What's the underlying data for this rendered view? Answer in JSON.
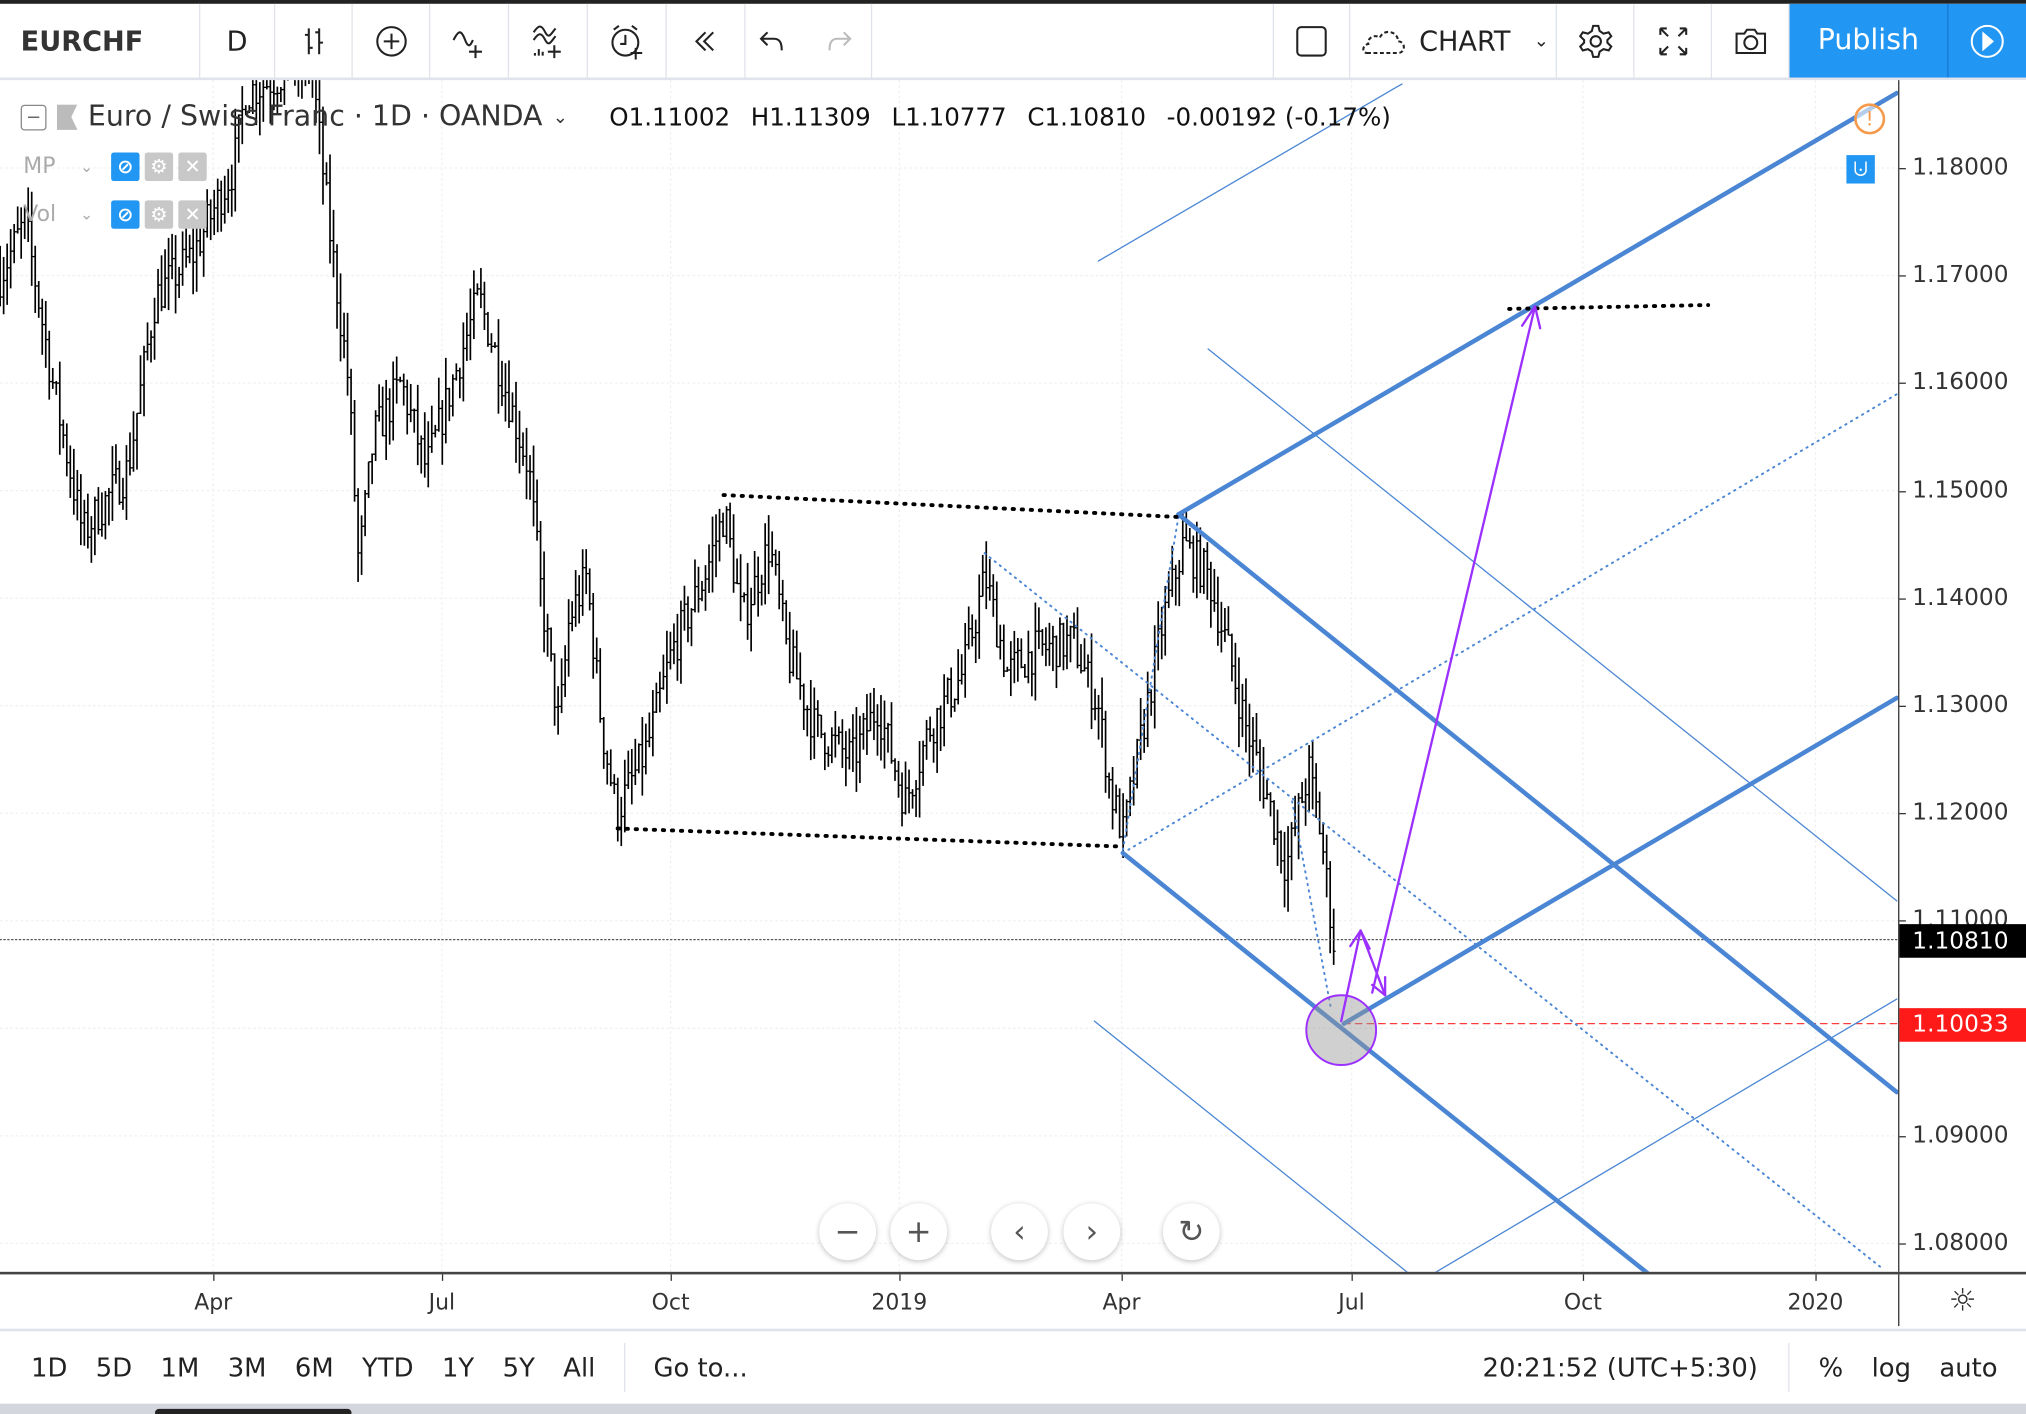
{
  "toolbar": {
    "symbol": "EURCHF",
    "interval": "D",
    "bar_style_icon": "bar-style-icon",
    "layout_name": "CHART",
    "publish_label": "Publish"
  },
  "legend": {
    "title": "Euro / Swiss Franc · 1D · OANDA",
    "open": "O1.11002",
    "high": "H1.11309",
    "low": "L1.10777",
    "close": "C1.10810",
    "change": "-0.00192 (-0.17%)"
  },
  "indicators": [
    {
      "name": "MP"
    },
    {
      "name": "Vol"
    }
  ],
  "price_axis": {
    "ticks": [
      "1.18000",
      "1.17000",
      "1.16000",
      "1.15000",
      "1.14000",
      "1.13000",
      "1.12000",
      "1.11000",
      "1.09000",
      "1.08000"
    ],
    "current_price": "1.10810",
    "marked_price": "1.10033",
    "current_color": "#000000",
    "marked_color": "#ff1a1a"
  },
  "time_axis": {
    "ticks": [
      "Apr",
      "Jul",
      "Oct",
      "2019",
      "Apr",
      "Jul",
      "Oct",
      "2020"
    ]
  },
  "bottom": {
    "ranges": [
      "1D",
      "5D",
      "1M",
      "3M",
      "6M",
      "YTD",
      "1Y",
      "5Y",
      "All"
    ],
    "goto": "Go to...",
    "clock": "20:21:52 (UTC+5:30)",
    "percent": "%",
    "log": "log",
    "auto": "auto"
  },
  "colors": {
    "accent": "#2196f3",
    "drawing_blue": "#4a86d4",
    "arrow_purple": "#9b30ff"
  },
  "price_series": {
    "unit": "days since 2018-04-01",
    "points": [
      [
        -85,
        1.17
      ],
      [
        -75,
        1.175
      ],
      [
        -64,
        1.16
      ],
      [
        -52,
        1.146
      ],
      [
        -34,
        1.152
      ],
      [
        -23,
        1.168
      ],
      [
        -8,
        1.172
      ],
      [
        8,
        1.18
      ],
      [
        13,
        1.187
      ],
      [
        39,
        1.19
      ],
      [
        46,
        1.175
      ],
      [
        54,
        1.16
      ],
      [
        58,
        1.143
      ],
      [
        64,
        1.155
      ],
      [
        75,
        1.16
      ],
      [
        85,
        1.152
      ],
      [
        98,
        1.162
      ],
      [
        106,
        1.168
      ],
      [
        116,
        1.16
      ],
      [
        126,
        1.152
      ],
      [
        131,
        1.14
      ],
      [
        138,
        1.128
      ],
      [
        142,
        1.138
      ],
      [
        149,
        1.142
      ],
      [
        155,
        1.128
      ],
      [
        161,
        1.12
      ],
      [
        173,
        1.126
      ],
      [
        183,
        1.135
      ],
      [
        196,
        1.142
      ],
      [
        204,
        1.148
      ],
      [
        211,
        1.138
      ],
      [
        222,
        1.145
      ],
      [
        229,
        1.135
      ],
      [
        240,
        1.128
      ],
      [
        255,
        1.125
      ],
      [
        265,
        1.13
      ],
      [
        276,
        1.121
      ],
      [
        286,
        1.128
      ],
      [
        299,
        1.133
      ],
      [
        308,
        1.142
      ],
      [
        317,
        1.133
      ],
      [
        327,
        1.135
      ],
      [
        343,
        1.136
      ],
      [
        353,
        1.13
      ],
      [
        358,
        1.122
      ],
      [
        363,
        1.118
      ],
      [
        371,
        1.128
      ],
      [
        379,
        1.138
      ],
      [
        387,
        1.145
      ],
      [
        397,
        1.142
      ],
      [
        405,
        1.135
      ],
      [
        412,
        1.128
      ],
      [
        420,
        1.122
      ],
      [
        428,
        1.115
      ],
      [
        437,
        1.124
      ],
      [
        442,
        1.118
      ],
      [
        447,
        1.1081
      ]
    ]
  }
}
